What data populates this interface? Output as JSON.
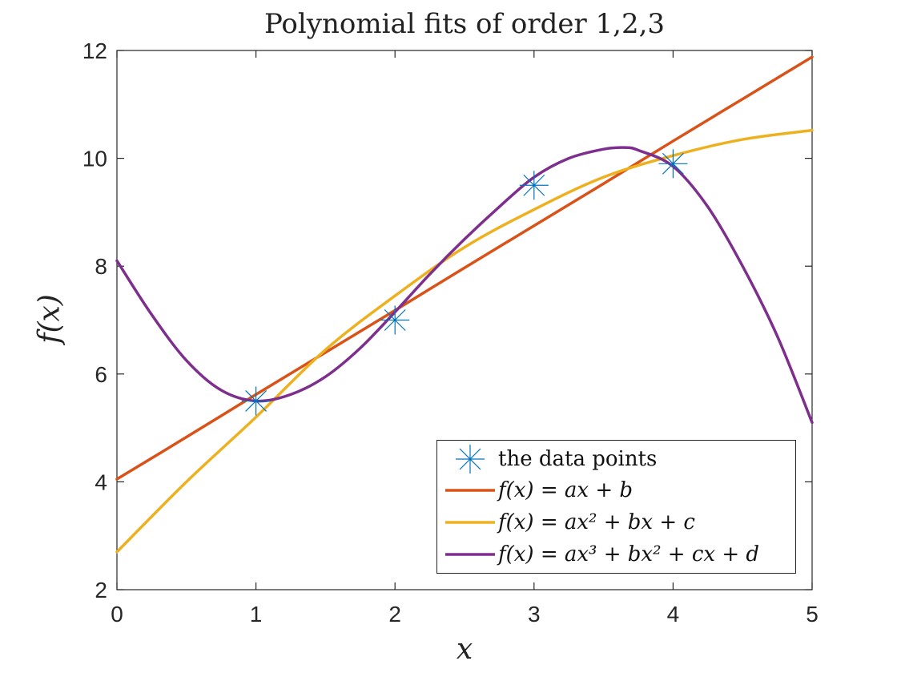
{
  "chart_data": {
    "type": "line",
    "title": "Polynomial fits of order 1,2,3",
    "xlabel": "x",
    "ylabel": "f(x)",
    "xlim": [
      0,
      5
    ],
    "ylim": [
      2,
      12
    ],
    "xticks": [
      "0",
      "1",
      "2",
      "3",
      "4",
      "5"
    ],
    "yticks": [
      "2",
      "4",
      "6",
      "8",
      "10",
      "12"
    ],
    "grid": false,
    "legend_position": "bottom-right",
    "colors": {
      "data_points": "#0072BD",
      "order1": "#D95319",
      "order2": "#EDB120",
      "order3": "#7E2F8E"
    },
    "series": [
      {
        "name": "the data points",
        "kind": "marker",
        "marker": "asterisk",
        "x": [
          1,
          2,
          3,
          4
        ],
        "y": [
          5.5,
          7.0,
          9.5,
          9.9
        ]
      },
      {
        "name": "f(x) = ax + b",
        "kind": "line",
        "x": [
          0,
          0.5,
          1,
          1.5,
          2,
          2.5,
          3,
          3.5,
          4,
          4.5,
          5
        ],
        "y": [
          4.05,
          4.83,
          5.62,
          6.4,
          7.18,
          7.97,
          8.75,
          9.53,
          10.32,
          11.1,
          11.88
        ]
      },
      {
        "name": "f(x) = ax^2 + bx + c",
        "kind": "line",
        "x": [
          0,
          0.5,
          1,
          1.5,
          2,
          2.5,
          3,
          3.5,
          4,
          4.5,
          5
        ],
        "y": [
          2.7,
          4.0,
          5.2,
          6.45,
          7.45,
          8.35,
          9.05,
          9.65,
          10.05,
          10.35,
          10.52
        ]
      },
      {
        "name": "f(x) = ax^3 + bx^2 + cx + d",
        "kind": "line",
        "x": [
          0,
          0.25,
          0.5,
          0.75,
          1,
          1.25,
          1.5,
          1.75,
          2,
          2.25,
          2.5,
          2.75,
          3,
          3.25,
          3.5,
          3.65,
          3.75,
          4,
          4.25,
          4.5,
          4.75,
          5
        ],
        "y": [
          8.1,
          7.1,
          6.25,
          5.7,
          5.5,
          5.62,
          5.95,
          6.48,
          7.15,
          7.85,
          8.5,
          9.1,
          9.65,
          10.0,
          10.17,
          10.2,
          10.15,
          9.85,
          9.1,
          8.0,
          6.7,
          5.1
        ]
      }
    ]
  },
  "legend": {
    "items": [
      {
        "label": "the data points",
        "style": "text"
      },
      {
        "label": "f(x) = ax + b",
        "style": "math"
      },
      {
        "label": "f(x) = ax² + bx + c",
        "style": "math"
      },
      {
        "label": "f(x) = ax³ + bx² + cx + d",
        "style": "math"
      }
    ]
  }
}
